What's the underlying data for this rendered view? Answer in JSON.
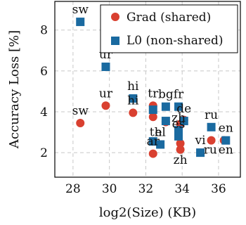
{
  "chart_data": {
    "type": "scatter",
    "xlabel": "log2(Size) (KB)",
    "ylabel": "Accuracy Loss [%]",
    "xlim": [
      27.0,
      37.2
    ],
    "ylim": [
      0.8,
      9.4
    ],
    "xticks": [
      28,
      30,
      32,
      34,
      36
    ],
    "yticks": [
      2,
      4,
      6,
      8
    ],
    "grid": true,
    "legend_position": "top-right",
    "series": [
      {
        "name": "Grad (shared)",
        "marker": "circle",
        "color": "#d94030",
        "points": [
          {
            "x": 28.4,
            "y": 3.45,
            "label": "sw"
          },
          {
            "x": 29.8,
            "y": 4.3,
            "label": "ur"
          },
          {
            "x": 31.3,
            "y": 3.95,
            "label": "hi"
          },
          {
            "x": 32.4,
            "y": 4.3,
            "label": "tr"
          },
          {
            "x": 32.4,
            "y": 3.75,
            "label": ""
          },
          {
            "x": 33.1,
            "y": 3.5,
            "label": ""
          },
          {
            "x": 33.9,
            "y": 3.4,
            "label": ""
          },
          {
            "x": 34.1,
            "y": 3.6,
            "label": ""
          },
          {
            "x": 33.9,
            "y": 2.45,
            "label": ""
          },
          {
            "x": 32.4,
            "y": 1.95,
            "label": "ar"
          },
          {
            "x": 33.9,
            "y": 2.15,
            "label": ""
          },
          {
            "x": 35.6,
            "y": 2.6,
            "label": ""
          },
          {
            "x": 36.3,
            "y": 2.6,
            "label": ""
          }
        ]
      },
      {
        "name": "L0 (non-shared)",
        "marker": "square",
        "color": "#1a6aa0",
        "points": [
          {
            "x": 28.4,
            "y": 8.4,
            "label": "sw"
          },
          {
            "x": 29.8,
            "y": 6.2,
            "label": "ur"
          },
          {
            "x": 31.3,
            "y": 4.65,
            "label": "hi"
          },
          {
            "x": 32.4,
            "y": 4.1,
            "label": ""
          },
          {
            "x": 33.1,
            "y": 4.25,
            "label": "bg"
          },
          {
            "x": 33.8,
            "y": 4.25,
            "label": "fr"
          },
          {
            "x": 34.1,
            "y": 3.55,
            "label": "de"
          },
          {
            "x": 33.1,
            "y": 3.55,
            "label": ""
          },
          {
            "x": 33.8,
            "y": 3.1,
            "label": "zh"
          },
          {
            "x": 33.8,
            "y": 2.8,
            "label": "es"
          },
          {
            "x": 32.4,
            "y": 2.55,
            "label": ""
          },
          {
            "x": 32.8,
            "y": 2.4,
            "label": "el"
          },
          {
            "x": 35.0,
            "y": 2.0,
            "label": "vi"
          },
          {
            "x": 35.6,
            "y": 3.25,
            "label": "ru"
          },
          {
            "x": 36.4,
            "y": 2.6,
            "label": "en"
          }
        ]
      }
    ],
    "annotations": [
      {
        "text": "th",
        "x": 32.55,
        "y": 2.82
      },
      {
        "text": "zh",
        "x": 33.9,
        "y": 1.45
      },
      {
        "text": "ru",
        "x": 35.55,
        "y": 1.95
      },
      {
        "text": "en",
        "x": 36.4,
        "y": 1.95
      }
    ]
  }
}
